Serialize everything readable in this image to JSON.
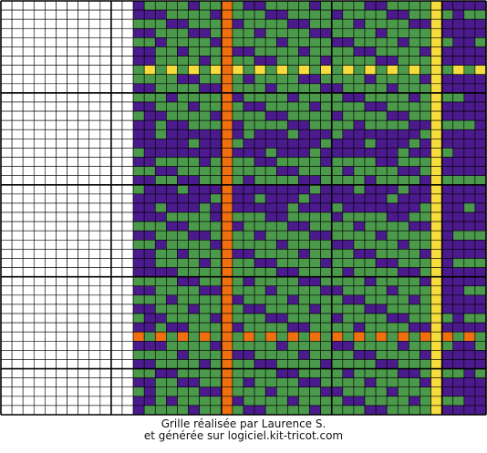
{
  "caption": {
    "line1": "Grille réalisée par Laurence S.",
    "line2": "et générée sur logiciel.kit-tricot.com"
  },
  "grid": {
    "columns": 44,
    "rows": 45,
    "blank_columns": 12,
    "major_line_every": 10,
    "colors": {
      "green": "#4b9a4b",
      "purple": "#4b1a8c",
      "orange": "#f07010",
      "yellow": "#f6dc3c",
      "blank": "#ffffff",
      "grid_line": "#000000"
    },
    "stripes": {
      "orange_column": 20,
      "yellow_column": 39,
      "yellow_row": 7,
      "orange_row": 36
    }
  }
}
